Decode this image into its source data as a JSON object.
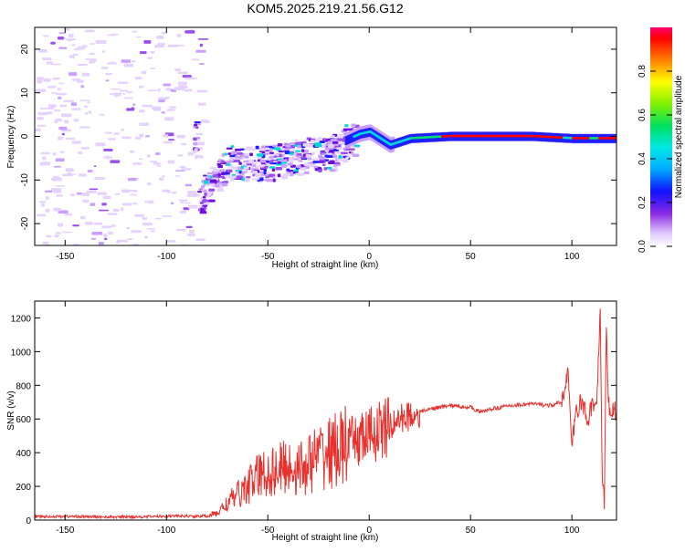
{
  "title": "KOM5.2025.219.21.56.G12",
  "chart_data": [
    {
      "type": "heatmap",
      "xlabel": "Height of straight line (km)",
      "ylabel": "Frequency (Hz)",
      "xlim": [
        -165,
        122
      ],
      "ylim": [
        -25,
        25
      ],
      "xticks": [
        -150,
        -100,
        -50,
        0,
        50,
        100
      ],
      "yticks": [
        -20,
        -10,
        0,
        10,
        20
      ],
      "colorbar": {
        "label": "Normalized spectral amplitude",
        "range": [
          0.0,
          1.0
        ],
        "ticks": [
          "0.0",
          "0.2",
          "0.4",
          "0.6",
          "0.8"
        ],
        "tick_values": [
          0.0,
          0.2,
          0.4,
          0.6,
          0.8
        ]
      },
      "ridge": [
        {
          "x": -85,
          "f": -14
        },
        {
          "x": -78,
          "f": -10
        },
        {
          "x": -70,
          "f": -6
        },
        {
          "x": -60,
          "f": -6
        },
        {
          "x": -50,
          "f": -6
        },
        {
          "x": -40,
          "f": -5
        },
        {
          "x": -30,
          "f": -4
        },
        {
          "x": -20,
          "f": -4
        },
        {
          "x": -12,
          "f": -1
        },
        {
          "x": -5,
          "f": 0.5
        },
        {
          "x": 0,
          "f": 1
        },
        {
          "x": 5,
          "f": -0.5
        },
        {
          "x": 10,
          "f": -2
        },
        {
          "x": 20,
          "f": -0.5
        },
        {
          "x": 40,
          "f": 0
        },
        {
          "x": 80,
          "f": 0
        },
        {
          "x": 100,
          "f": -0.5
        },
        {
          "x": 122,
          "f": -0.5
        }
      ]
    },
    {
      "type": "line",
      "xlabel": "Height of straight line (km)",
      "ylabel": "SNR (v/v)",
      "xlim": [
        -165,
        122
      ],
      "ylim": [
        0,
        1300
      ],
      "xticks": [
        -150,
        -100,
        -50,
        0,
        50,
        100
      ],
      "yticks": [
        0,
        200,
        400,
        600,
        800,
        1000,
        1200
      ],
      "series": [
        {
          "name": "SNR",
          "color": "#e8302c",
          "x": [
            -165,
            -150,
            -130,
            -110,
            -95,
            -85,
            -80,
            -75,
            -70,
            -65,
            -60,
            -55,
            -50,
            -45,
            -40,
            -35,
            -30,
            -25,
            -20,
            -15,
            -10,
            -5,
            0,
            5,
            10,
            15,
            20,
            25,
            30,
            40,
            50,
            55,
            60,
            70,
            80,
            90,
            95,
            98,
            100,
            102,
            105,
            108,
            110,
            112,
            114,
            115,
            116,
            117,
            118,
            120,
            122
          ],
          "y": [
            20,
            22,
            18,
            20,
            25,
            22,
            25,
            40,
            100,
            150,
            200,
            260,
            280,
            300,
            320,
            300,
            330,
            380,
            400,
            420,
            450,
            480,
            500,
            530,
            550,
            600,
            620,
            640,
            660,
            680,
            670,
            640,
            660,
            680,
            690,
            680,
            700,
            900,
            420,
            650,
            700,
            580,
            700,
            650,
            1250,
            200,
            100,
            1200,
            680,
            650,
            640
          ]
        }
      ]
    }
  ]
}
